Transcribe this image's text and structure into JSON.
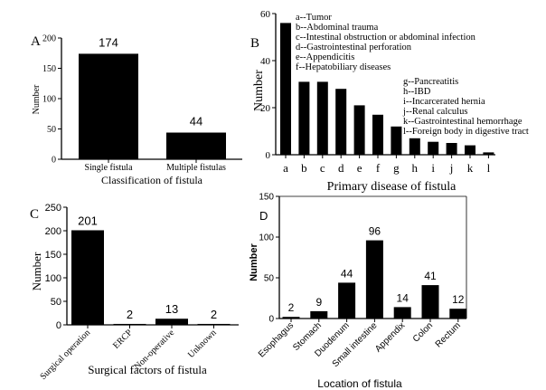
{
  "chart_data": [
    {
      "panel": "A",
      "type": "bar",
      "categories": [
        "Single fistula",
        "Multiple fistulas"
      ],
      "values": [
        174,
        44
      ],
      "data_labels": [
        "174",
        "44"
      ],
      "xlabel": "Classification of fistula",
      "ylabel": "Number",
      "ylim": [
        0,
        200
      ],
      "yticks": [
        0,
        50,
        100,
        150,
        200
      ],
      "bar_color": "#000000"
    },
    {
      "panel": "B",
      "type": "bar",
      "categories": [
        "a",
        "b",
        "c",
        "d",
        "e",
        "f",
        "g",
        "h",
        "i",
        "j",
        "k",
        "l"
      ],
      "values": [
        56,
        31,
        31,
        28,
        21,
        17,
        12,
        7,
        5.5,
        5,
        4,
        1
      ],
      "xlabel": "Primary disease of fistula",
      "ylabel": "Number",
      "ylim": [
        0,
        60
      ],
      "yticks": [
        0,
        20,
        40,
        60
      ],
      "legend": [
        "a--Tumor",
        "b--Abdominal trauma",
        "c--Intestinal obstruction or abdominal infection",
        "d--Gastrointestinal perforation",
        "e--Appendicitis",
        "f--Hepatobiliary diseases",
        "g--Pancreatitis",
        "h--IBD",
        "i--Incarcerated hernia",
        "j--Renal calculus",
        "k--Gastrointestinal hemorrhage",
        "l--Foreign body in digestive tract"
      ],
      "bar_color": "#000000"
    },
    {
      "panel": "C",
      "type": "bar",
      "categories": [
        "Surgical operation",
        "ERCP",
        "Non-operative",
        "Unknown"
      ],
      "values": [
        201,
        2,
        13,
        2
      ],
      "data_labels": [
        "201",
        "2",
        "13",
        "2"
      ],
      "xlabel": "Surgical factors of fistula",
      "ylabel": "Number",
      "ylim": [
        0,
        250
      ],
      "yticks": [
        0,
        50,
        100,
        150,
        200,
        250
      ],
      "bar_color": "#000000"
    },
    {
      "panel": "D",
      "type": "bar",
      "categories": [
        "Esophagus",
        "Stomach",
        "Duodenum",
        "Small intestine",
        "Appendix",
        "Colon",
        "Rectum"
      ],
      "values": [
        2,
        9,
        44,
        96,
        14,
        41,
        12
      ],
      "data_labels": [
        "2",
        "9",
        "44",
        "96",
        "14",
        "41",
        "12"
      ],
      "xlabel": "Location of fistula",
      "ylabel": "Number",
      "ylim": [
        0,
        150
      ],
      "yticks": [
        0,
        50,
        100,
        150
      ],
      "bar_color": "#000000"
    }
  ]
}
